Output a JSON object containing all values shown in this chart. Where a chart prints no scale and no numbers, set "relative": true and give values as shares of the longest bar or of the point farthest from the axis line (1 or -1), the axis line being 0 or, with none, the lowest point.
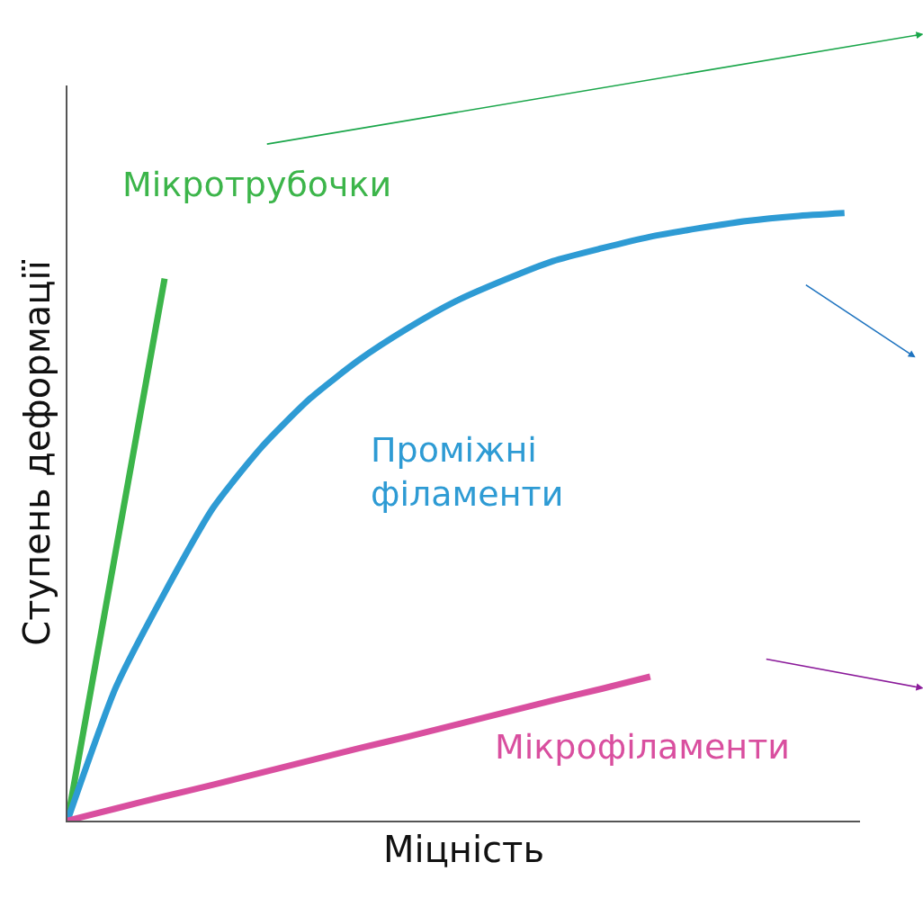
{
  "chart_data": {
    "type": "line",
    "relative": true,
    "xlabel": "Міцність",
    "ylabel": "Ступень деформації",
    "legend": false,
    "categories": [
      null,
      null,
      null,
      null,
      null,
      null,
      null,
      null,
      null,
      null,
      null,
      null,
      null,
      null,
      null,
      null,
      null
    ],
    "series": [
      {
        "name": "Мікротрубочки",
        "color": "#3cb54a",
        "values": [
          0,
          0.446,
          0.892,
          null,
          null,
          null,
          null,
          null,
          null,
          null,
          null,
          null,
          null,
          null,
          null,
          null,
          null
        ]
      },
      {
        "name": "Проміжні філаменти",
        "color": "#2e9bd4",
        "values": [
          0,
          0.22,
          0.375,
          0.515,
          0.615,
          0.695,
          0.758,
          0.81,
          0.855,
          0.89,
          0.921,
          0.942,
          0.961,
          0.975,
          0.987,
          0.995,
          1.0
        ]
      },
      {
        "name": "Мікрофіламенти",
        "color": "#d94f9f",
        "values": [
          0,
          0.02,
          0.04,
          0.059,
          0.079,
          0.099,
          0.119,
          0.138,
          0.158,
          0.178,
          0.198,
          0.217,
          0.237,
          null,
          null,
          null,
          null
        ]
      }
    ]
  }
}
